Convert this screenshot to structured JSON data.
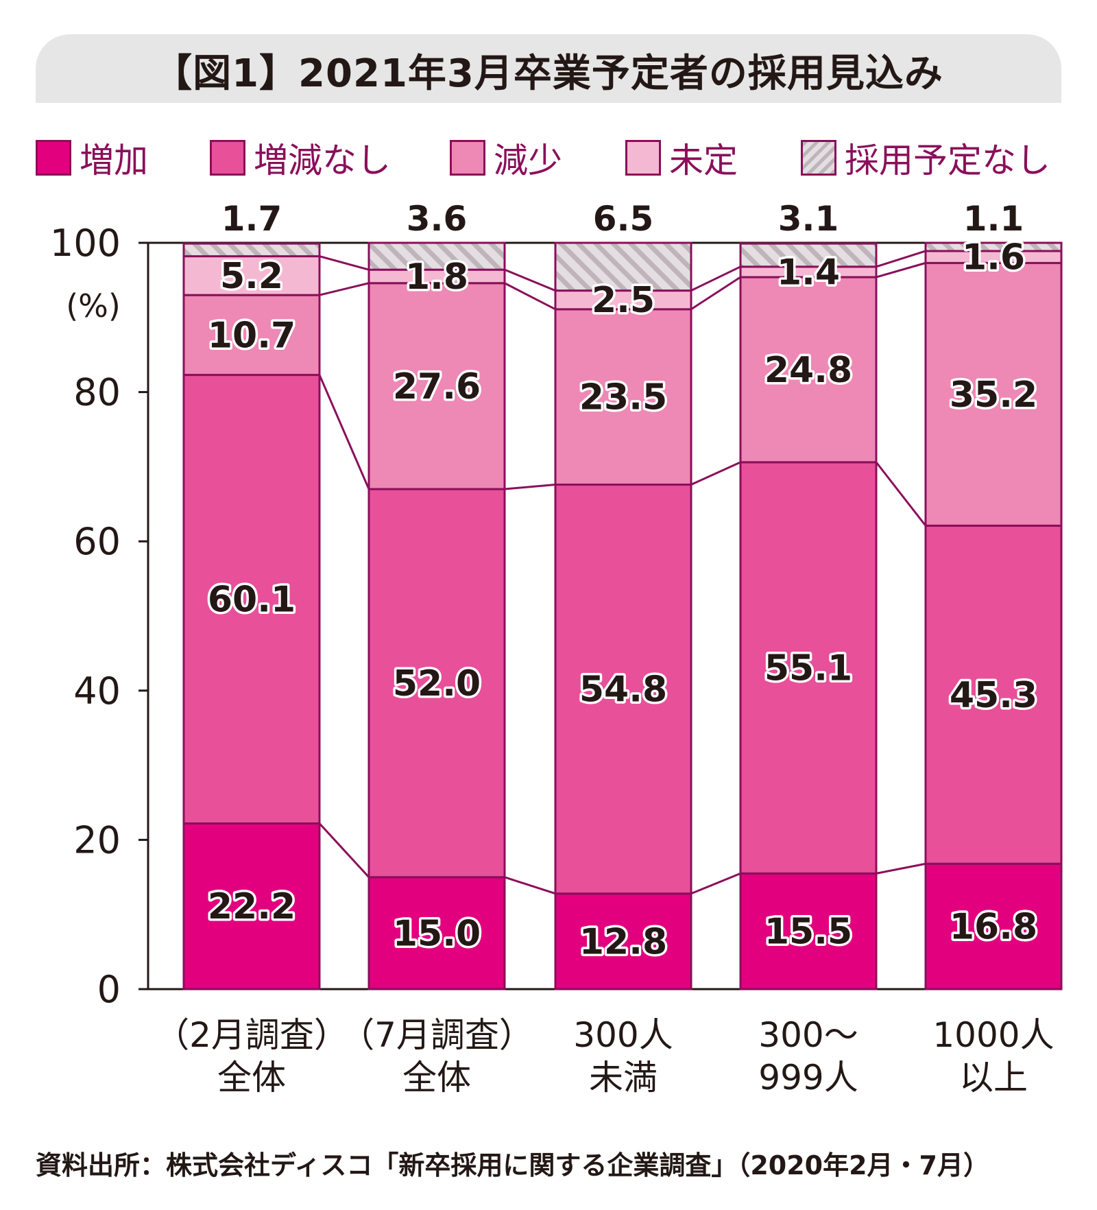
{
  "title": "【図1】2021年3月卒業予定者の採用見込み",
  "source": "資料出所：株式会社ディスコ「新卒採用に関する企業調査」（2020年2月・7月）",
  "colors": {
    "増加": "#e3007f",
    "増減なし": "#e8509a",
    "減少": "#ee88b4",
    "未定": "#f5b8d2",
    "採用予定なし": "#e4dde1",
    "outline": "#8a0f5a"
  },
  "legend": [
    {
      "label": "増加"
    },
    {
      "label": "増減なし"
    },
    {
      "label": "減少"
    },
    {
      "label": "未定"
    },
    {
      "label": "採用予定なし"
    }
  ],
  "chart_data": {
    "type": "bar",
    "stacked": true,
    "categories": [
      [
        "（2月調査）",
        "全体"
      ],
      [
        "（7月調査）",
        "全体"
      ],
      [
        "300人",
        "未満"
      ],
      [
        "300～",
        "999人"
      ],
      [
        "1000人",
        "以上"
      ]
    ],
    "series": [
      {
        "name": "増加",
        "values": [
          22.2,
          15.0,
          12.8,
          15.5,
          16.8
        ],
        "labels": [
          "22.2",
          "15.0",
          "12.8",
          "15.5",
          "16.8"
        ]
      },
      {
        "name": "増減なし",
        "values": [
          60.1,
          52.0,
          54.8,
          55.1,
          45.3
        ],
        "labels": [
          "60.1",
          "52.0",
          "54.8",
          "55.1",
          "45.3"
        ]
      },
      {
        "name": "減少",
        "values": [
          10.7,
          27.6,
          23.5,
          24.8,
          35.2
        ],
        "labels": [
          "10.7",
          "27.6",
          "23.5",
          "24.8",
          "35.2"
        ]
      },
      {
        "name": "未定",
        "values": [
          5.2,
          1.8,
          2.5,
          1.4,
          1.6
        ],
        "labels": [
          "5.2",
          "1.8",
          "2.5",
          "1.4",
          "1.6"
        ]
      },
      {
        "name": "採用予定なし",
        "values": [
          1.7,
          3.6,
          6.5,
          3.1,
          1.1
        ],
        "labels": [
          "1.7",
          "3.6",
          "6.5",
          "3.1",
          "1.1"
        ]
      }
    ],
    "ylim": [
      0,
      100
    ],
    "yticks": [
      0,
      20,
      40,
      60,
      80,
      100
    ],
    "ylabel": "(%)",
    "xlabel": "",
    "grid": false,
    "connector_lines": true,
    "legend_position": "top"
  }
}
